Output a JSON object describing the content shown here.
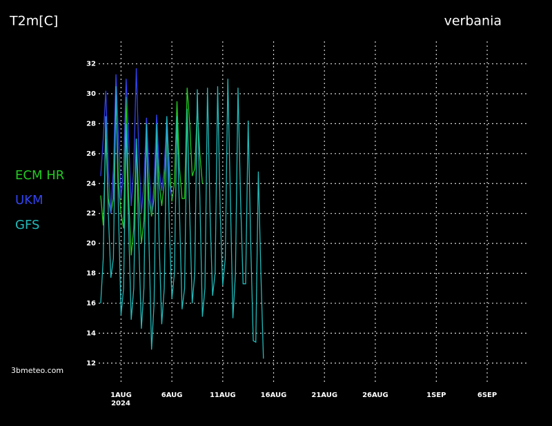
{
  "chart_data": {
    "type": "line",
    "title": "T2m[C]",
    "subtitle": "verbania",
    "source": "3bmeteo.com",
    "x_axis_year": "2024",
    "xlim": [
      -1.2,
      41
    ],
    "ylim": [
      10.7,
      33.5
    ],
    "xticks": [
      {
        "value": 1,
        "label": "1AUG"
      },
      {
        "value": 6,
        "label": "6AUG"
      },
      {
        "value": 11,
        "label": "11AUG"
      },
      {
        "value": 16,
        "label": "16AUG"
      },
      {
        "value": 21,
        "label": "21AUG"
      },
      {
        "value": 26,
        "label": "26AUG"
      },
      {
        "value": 32,
        "label": "1SEP"
      },
      {
        "value": 37,
        "label": "6SEP"
      }
    ],
    "yticks": [
      12,
      14,
      16,
      18,
      20,
      22,
      24,
      26,
      28,
      30,
      32
    ],
    "grid": true,
    "legend": "left",
    "series": [
      {
        "name": "ECM  HR",
        "color": "#22cc22",
        "x": [
          -1,
          -0.75,
          -0.5,
          -0.25,
          0,
          0.25,
          0.5,
          0.75,
          1,
          1.25,
          1.5,
          1.75,
          2,
          2.25,
          2.5,
          2.75,
          3,
          3.25,
          3.5,
          3.75,
          4,
          4.25,
          4.5,
          4.75,
          5,
          5.25,
          5.5,
          5.75,
          6,
          6.25,
          6.5,
          6.75,
          7,
          7.25,
          7.5,
          7.75,
          8,
          8.25,
          8.5,
          8.75,
          9
        ],
        "values": [
          23.2,
          21.2,
          27,
          23,
          22,
          23,
          29.7,
          24,
          22,
          21,
          29.8,
          23,
          19.2,
          21,
          27,
          23,
          20,
          21.5,
          27.2,
          23,
          21.8,
          23,
          27,
          24,
          22.5,
          24,
          28.5,
          25,
          22.8,
          24,
          29.5,
          25,
          23,
          23,
          30.4,
          28,
          24.5,
          25,
          29,
          26,
          24
        ]
      },
      {
        "name": "UKM",
        "color": "#3344ee",
        "x": [
          -1,
          -0.75,
          -0.5,
          -0.25,
          0,
          0.25,
          0.5,
          0.75,
          1,
          1.25,
          1.5,
          1.75,
          2,
          2.25,
          2.5,
          2.75,
          3,
          3.25,
          3.5,
          3.75,
          4,
          4.25,
          4.5,
          4.75,
          5,
          5.25,
          5.5,
          5.75,
          6
        ],
        "values": [
          24.5,
          27,
          30.2,
          25,
          22,
          25,
          31.3,
          27,
          23,
          25,
          31,
          27,
          22.5,
          25,
          31.7,
          26,
          22,
          24,
          28.4,
          25,
          22,
          24,
          28.6,
          25,
          23.5,
          25,
          28.5,
          24,
          23
        ]
      },
      {
        "name": "GFS",
        "color": "#22bbbb",
        "x": [
          -1,
          -0.75,
          -0.5,
          -0.25,
          0,
          0.25,
          0.5,
          0.75,
          1,
          1.25,
          1.5,
          1.75,
          2,
          2.25,
          2.5,
          2.75,
          3,
          3.25,
          3.5,
          3.75,
          4,
          4.25,
          4.5,
          4.75,
          5,
          5.25,
          5.5,
          5.75,
          6,
          6.25,
          6.5,
          6.75,
          7,
          7.25,
          7.5,
          7.75,
          8,
          8.25,
          8.5,
          8.75,
          9,
          9.25,
          9.5,
          9.75,
          10,
          10.25,
          10.5,
          10.75,
          11,
          11.25,
          11.5,
          11.75,
          12,
          12.25,
          12.5,
          12.75,
          13,
          13.25,
          13.5,
          13.75,
          14,
          14.25,
          14.5,
          14.75,
          15
        ],
        "values": [
          16,
          19,
          28.5,
          22,
          17.7,
          19,
          30.5,
          22,
          15.2,
          17,
          28,
          21,
          14.9,
          17,
          27,
          20,
          14.3,
          17,
          28,
          20,
          12.9,
          16,
          28,
          20,
          14.6,
          17,
          28.5,
          21,
          16.3,
          18,
          28.5,
          22,
          15.6,
          17,
          29,
          22,
          16,
          18,
          30.3,
          23,
          15.1,
          17,
          30.4,
          22,
          16.5,
          18,
          30.5,
          22,
          17.2,
          19,
          31,
          23,
          15,
          18,
          30.4,
          23,
          17.3,
          17.3,
          28.2,
          20,
          13.5,
          13.4,
          24.8,
          18,
          12.3
        ]
      }
    ]
  }
}
